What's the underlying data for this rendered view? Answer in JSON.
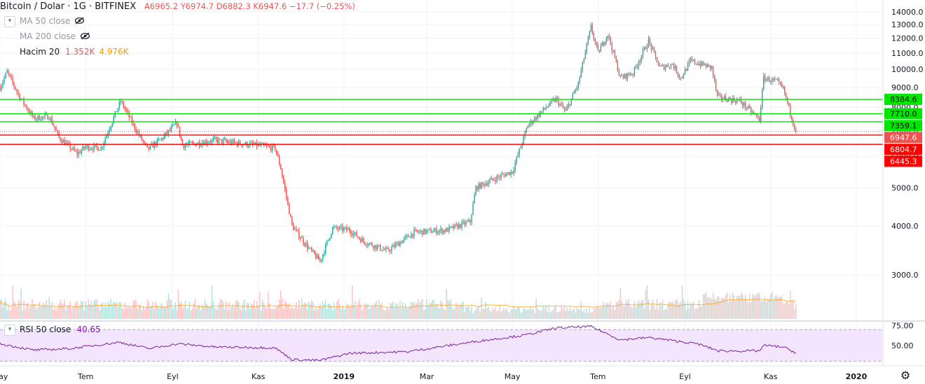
{
  "header": {
    "title": "Bitcoin / Dolar · 1G · BITFINEX",
    "ohlc": "A6965.2  Y6974.7  D6882.3  K6947.6  −17.7 (−0.25%)"
  },
  "indicators": {
    "ma50": "MA 50 close",
    "ma200": "MA 200 close",
    "volume_name": "Hacim 20",
    "volume_value": "1.352K",
    "volume_ma": "4.976K",
    "rsi_name": "RSI 50 close",
    "rsi_value": "40.65"
  },
  "icons": {
    "eye_hidden": "eye-crossed-icon",
    "chevron": "chevron-down-icon",
    "settings": "gear-icon"
  },
  "colors": {
    "up": "#26a69a",
    "down": "#ef5350",
    "support": "#00e600",
    "resistance": "#ff0000",
    "rsi_line": "#7b1fa2",
    "rsi_band": "#f3e5fb",
    "volume_ma": "#ff9800"
  },
  "chart_data": {
    "type": "candlestick",
    "title": "Bitcoin / Dolar · 1G · BITFINEX",
    "yscale": "log",
    "ylim": [
      2300,
      15000
    ],
    "y_ticks": [
      "3000.0",
      "4000.0",
      "5000.0",
      "6000.0",
      "7000.0",
      "8000.0",
      "9000.0",
      "10000.0",
      "11000.0",
      "12000.0",
      "13000.0",
      "14000.0"
    ],
    "x_ticks": [
      "May",
      "Tem",
      "Eyl",
      "Kas",
      "2019",
      "Mar",
      "May",
      "Tem",
      "Eyl",
      "Kas",
      "2020"
    ],
    "x_range": [
      "2018-05-01",
      "2020-01-20"
    ],
    "last_date": "2019-11-19",
    "price_path": [
      [
        "2018-05-01",
        9000
      ],
      [
        "2018-05-06",
        9850
      ],
      [
        "2018-05-15",
        8500
      ],
      [
        "2018-05-25",
        7500
      ],
      [
        "2018-06-05",
        7600
      ],
      [
        "2018-06-12",
        6700
      ],
      [
        "2018-06-25",
        6100
      ],
      [
        "2018-07-01",
        6350
      ],
      [
        "2018-07-12",
        6300
      ],
      [
        "2018-07-20",
        7400
      ],
      [
        "2018-07-26",
        8300
      ],
      [
        "2018-08-05",
        7100
      ],
      [
        "2018-08-14",
        6250
      ],
      [
        "2018-08-25",
        6700
      ],
      [
        "2018-09-04",
        7300
      ],
      [
        "2018-09-08",
        6400
      ],
      [
        "2018-09-20",
        6500
      ],
      [
        "2018-10-01",
        6600
      ],
      [
        "2018-10-15",
        6500
      ],
      [
        "2018-11-01",
        6400
      ],
      [
        "2018-11-13",
        6300
      ],
      [
        "2018-11-17",
        5600
      ],
      [
        "2018-11-25",
        4000
      ],
      [
        "2018-12-07",
        3500
      ],
      [
        "2018-12-15",
        3250
      ],
      [
        "2018-12-24",
        3950
      ],
      [
        "2019-01-05",
        3900
      ],
      [
        "2019-01-15",
        3650
      ],
      [
        "2019-02-01",
        3450
      ],
      [
        "2019-02-20",
        3850
      ],
      [
        "2019-03-15",
        3900
      ],
      [
        "2019-04-01",
        4100
      ],
      [
        "2019-04-05",
        5000
      ],
      [
        "2019-04-20",
        5300
      ],
      [
        "2019-05-01",
        5500
      ],
      [
        "2019-05-12",
        7200
      ],
      [
        "2019-05-25",
        8000
      ],
      [
        "2019-06-01",
        8400
      ],
      [
        "2019-06-08",
        7800
      ],
      [
        "2019-06-17",
        9200
      ],
      [
        "2019-06-26",
        12800
      ],
      [
        "2019-07-01",
        11000
      ],
      [
        "2019-07-08",
        12300
      ],
      [
        "2019-07-17",
        9500
      ],
      [
        "2019-07-26",
        9800
      ],
      [
        "2019-08-06",
        11800
      ],
      [
        "2019-08-14",
        10100
      ],
      [
        "2019-08-23",
        10300
      ],
      [
        "2019-08-29",
        9500
      ],
      [
        "2019-09-05",
        10500
      ],
      [
        "2019-09-20",
        10100
      ],
      [
        "2019-09-24",
        8500
      ],
      [
        "2019-10-10",
        8300
      ],
      [
        "2019-10-24",
        7450
      ],
      [
        "2019-10-27",
        9500
      ],
      [
        "2019-11-05",
        9300
      ],
      [
        "2019-11-10",
        8900
      ],
      [
        "2019-11-19",
        6947.6
      ]
    ],
    "rsi": {
      "ylim": [
        25,
        80
      ],
      "y_ticks": [
        "75.00",
        "50.00"
      ],
      "bands": [
        30,
        70
      ],
      "path": [
        [
          "2018-05-01",
          52
        ],
        [
          "2018-05-25",
          44
        ],
        [
          "2018-06-20",
          46
        ],
        [
          "2018-07-25",
          54
        ],
        [
          "2018-08-15",
          46
        ],
        [
          "2018-09-05",
          52
        ],
        [
          "2018-10-01",
          48
        ],
        [
          "2018-11-13",
          47
        ],
        [
          "2018-11-25",
          32
        ],
        [
          "2018-12-15",
          31
        ],
        [
          "2019-01-05",
          40
        ],
        [
          "2019-02-15",
          42
        ],
        [
          "2019-04-05",
          55
        ],
        [
          "2019-05-10",
          63
        ],
        [
          "2019-06-01",
          72
        ],
        [
          "2019-06-26",
          74
        ],
        [
          "2019-07-17",
          57
        ],
        [
          "2019-08-06",
          60
        ],
        [
          "2019-09-10",
          52
        ],
        [
          "2019-09-25",
          43
        ],
        [
          "2019-10-24",
          43
        ],
        [
          "2019-10-27",
          50
        ],
        [
          "2019-11-10",
          48
        ],
        [
          "2019-11-19",
          40.65
        ]
      ]
    },
    "levels": [
      {
        "value": 8384.6,
        "label": "8384.6",
        "color": "#00e600"
      },
      {
        "value": 7710.0,
        "label": "7710.0",
        "color": "#00e600"
      },
      {
        "value": 7359.1,
        "label": "7359.1",
        "color": "#00e600"
      },
      {
        "value": 6804.7,
        "label": "6804.7",
        "color": "#ff0000"
      },
      {
        "value": 6445.3,
        "label": "6445.3",
        "color": "#ff0000"
      }
    ],
    "last_price": {
      "value": 6947.6,
      "label": "6947.6"
    }
  }
}
